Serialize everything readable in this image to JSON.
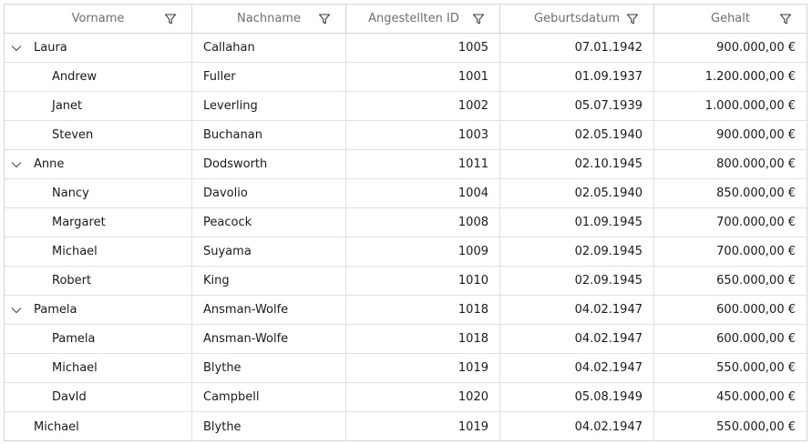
{
  "columns": {
    "firstname": "Vorname",
    "lastname": "Nachname",
    "id": "Angestellten ID",
    "birthdate": "Geburtsdatum",
    "salary": "Gehalt"
  },
  "icons": {
    "filter": "filter-icon",
    "expand": "chevron-down-icon"
  },
  "rows": [
    {
      "firstname": "Laura",
      "lastname": "Callahan",
      "id": "1005",
      "birthdate": "07.01.1942",
      "salary": "900.000,00 €"
    },
    {
      "firstname": "Andrew",
      "lastname": "Fuller",
      "id": "1001",
      "birthdate": "01.09.1937",
      "salary": "1.200.000,00 €"
    },
    {
      "firstname": "Janet",
      "lastname": "Leverling",
      "id": "1002",
      "birthdate": "05.07.1939",
      "salary": "1.000.000,00 €"
    },
    {
      "firstname": "Steven",
      "lastname": "Buchanan",
      "id": "1003",
      "birthdate": "02.05.1940",
      "salary": "900.000,00 €"
    },
    {
      "firstname": "Anne",
      "lastname": "Dodsworth",
      "id": "1011",
      "birthdate": "02.10.1945",
      "salary": "800.000,00 €"
    },
    {
      "firstname": "Nancy",
      "lastname": "Davolio",
      "id": "1004",
      "birthdate": "02.05.1940",
      "salary": "850.000,00 €"
    },
    {
      "firstname": "Margaret",
      "lastname": "Peacock",
      "id": "1008",
      "birthdate": "01.09.1945",
      "salary": "700.000,00 €"
    },
    {
      "firstname": "Michael",
      "lastname": "Suyama",
      "id": "1009",
      "birthdate": "02.09.1945",
      "salary": "700.000,00 €"
    },
    {
      "firstname": "Robert",
      "lastname": "King",
      "id": "1010",
      "birthdate": "02.09.1945",
      "salary": "650.000,00 €"
    },
    {
      "firstname": "Pamela",
      "lastname": "Ansman-Wolfe",
      "id": "1018",
      "birthdate": "04.02.1947",
      "salary": "600.000,00 €"
    },
    {
      "firstname": "Pamela",
      "lastname": "Ansman-Wolfe",
      "id": "1018",
      "birthdate": "04.02.1947",
      "salary": "600.000,00 €"
    },
    {
      "firstname": "Michael",
      "lastname": "Blythe",
      "id": "1019",
      "birthdate": "04.02.1947",
      "salary": "550.000,00 €"
    },
    {
      "firstname": "DavId",
      "lastname": "Campbell",
      "id": "1020",
      "birthdate": "05.08.1949",
      "salary": "450.000,00 €"
    },
    {
      "firstname": "Michael",
      "lastname": "Blythe",
      "id": "1019",
      "birthdate": "04.02.1947",
      "salary": "550.000,00 €"
    }
  ]
}
